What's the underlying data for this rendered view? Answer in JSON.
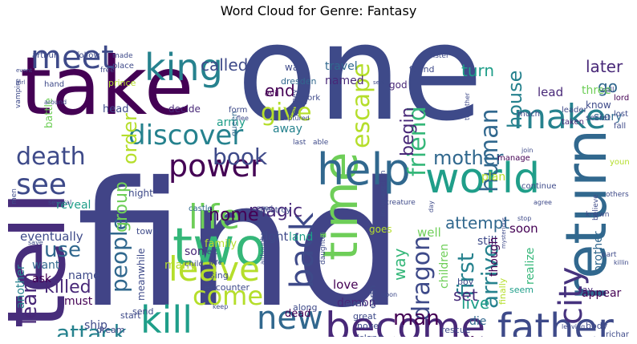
{
  "chart_data": {
    "type": "wordcloud",
    "title": "Word Cloud for Genre: Fantasy",
    "colormap": "viridis",
    "background": "#ffffff",
    "words": [
      {
        "text": "find",
        "weight": 100,
        "color": "#414487"
      },
      {
        "text": "one",
        "weight": 92,
        "color": "#3e4a89"
      },
      {
        "text": "take",
        "weight": 72,
        "color": "#440154"
      },
      {
        "text": "tell",
        "weight": 66,
        "color": "#472d7b"
      },
      {
        "text": "return",
        "weight": 48,
        "color": "#31688e"
      },
      {
        "text": "two",
        "weight": 44,
        "color": "#35b779"
      },
      {
        "text": "time",
        "weight": 40,
        "color": "#6ece58"
      },
      {
        "text": "help",
        "weight": 38,
        "color": "#31688e"
      },
      {
        "text": "world",
        "weight": 38,
        "color": "#1f9e89"
      },
      {
        "text": "become",
        "weight": 36,
        "color": "#482878"
      },
      {
        "text": "father",
        "weight": 34,
        "color": "#3e4a89"
      },
      {
        "text": "king",
        "weight": 34,
        "color": "#26828e"
      },
      {
        "text": "kill",
        "weight": 33,
        "color": "#1f9e89"
      },
      {
        "text": "make",
        "weight": 32,
        "color": "#26828e"
      },
      {
        "text": "life",
        "weight": 31,
        "color": "#6ece58"
      },
      {
        "text": "leave",
        "weight": 31,
        "color": "#b5de2b"
      },
      {
        "text": "meet",
        "weight": 30,
        "color": "#3e4a89"
      },
      {
        "text": "back",
        "weight": 30,
        "color": "#3e4a89"
      },
      {
        "text": "new",
        "weight": 29,
        "color": "#31688e"
      },
      {
        "text": "power",
        "weight": 28,
        "color": "#440154"
      },
      {
        "text": "see",
        "weight": 28,
        "color": "#3e4a89"
      },
      {
        "text": "city",
        "weight": 27,
        "color": "#46327e"
      },
      {
        "text": "escape",
        "weight": 24,
        "color": "#b5de2b"
      },
      {
        "text": "friend",
        "weight": 24,
        "color": "#35b779"
      },
      {
        "text": "human",
        "weight": 24,
        "color": "#31688e"
      },
      {
        "text": "discover",
        "weight": 24,
        "color": "#26828e"
      },
      {
        "text": "people",
        "weight": 23,
        "color": "#31688e"
      },
      {
        "text": "dragon",
        "weight": 23,
        "color": "#3e4a89"
      },
      {
        "text": "first",
        "weight": 22,
        "color": "#26828e"
      },
      {
        "text": "arrive",
        "weight": 22,
        "color": "#26828e"
      },
      {
        "text": "come",
        "weight": 22,
        "color": "#b5de2b"
      },
      {
        "text": "give",
        "weight": 21,
        "color": "#b5de2b"
      },
      {
        "text": "death",
        "weight": 21,
        "color": "#3e4a89"
      },
      {
        "text": "attack",
        "weight": 20,
        "color": "#26828e"
      },
      {
        "text": "book",
        "weight": 20,
        "color": "#3e4a89"
      },
      {
        "text": "mother",
        "weight": 20,
        "color": "#31688e"
      },
      {
        "text": "order",
        "weight": 19,
        "color": "#b5de2b"
      },
      {
        "text": "begin",
        "weight": 19,
        "color": "#482878"
      },
      {
        "text": "learn",
        "weight": 18,
        "color": "#482878"
      },
      {
        "text": "use",
        "weight": 18,
        "color": "#31688e"
      },
      {
        "text": "man",
        "weight": 18,
        "color": "#440154"
      },
      {
        "text": "group",
        "weight": 18,
        "color": "#6ece58"
      },
      {
        "text": "house",
        "weight": 16,
        "color": "#26828e"
      },
      {
        "text": "killed",
        "weight": 16,
        "color": "#482878"
      },
      {
        "text": "magic",
        "weight": 15,
        "color": "#482878"
      },
      {
        "text": "home",
        "weight": 15,
        "color": "#440154"
      },
      {
        "text": "called",
        "weight": 15,
        "color": "#3e4a89"
      },
      {
        "text": "turn",
        "weight": 15,
        "color": "#1f9e89"
      },
      {
        "text": "later",
        "weight": 15,
        "color": "#482878"
      },
      {
        "text": "end",
        "weight": 14,
        "color": "#440154"
      },
      {
        "text": "attempt",
        "weight": 14,
        "color": "#31688e"
      },
      {
        "text": "live",
        "weight": 14,
        "color": "#1f9e89"
      },
      {
        "text": "way",
        "weight": 14,
        "color": "#35b779"
      },
      {
        "text": "set",
        "weight": 14,
        "color": "#472d7b"
      },
      {
        "text": "go",
        "weight": 14,
        "color": "#31688e"
      },
      {
        "text": "another",
        "weight": 11,
        "color": "#26828e"
      },
      {
        "text": "eventually",
        "weight": 11,
        "color": "#3e4a89"
      },
      {
        "text": "fight",
        "weight": 11,
        "color": "#3e4a89"
      },
      {
        "text": "love",
        "weight": 11,
        "color": "#440154"
      },
      {
        "text": "soon",
        "weight": 11,
        "color": "#440154"
      },
      {
        "text": "well",
        "weight": 11,
        "color": "#6ece58"
      },
      {
        "text": "lead",
        "weight": 11,
        "color": "#482878"
      },
      {
        "text": "three",
        "weight": 11,
        "color": "#6ece58"
      },
      {
        "text": "story",
        "weight": 11,
        "color": "#31688e"
      },
      {
        "text": "reveal",
        "weight": 11,
        "color": "#1f9e89"
      },
      {
        "text": "want",
        "weight": 10,
        "color": "#31688e"
      },
      {
        "text": "name",
        "weight": 10,
        "color": "#3e4a89"
      },
      {
        "text": "must",
        "weight": 10,
        "color": "#440154"
      },
      {
        "text": "ask",
        "weight": 10,
        "color": "#440154"
      },
      {
        "text": "son",
        "weight": 10,
        "color": "#482878"
      },
      {
        "text": "many",
        "weight": 10,
        "color": "#b5de2b"
      },
      {
        "text": "demon",
        "weight": 10,
        "color": "#482878"
      },
      {
        "text": "die",
        "weight": 10,
        "color": "#31688e"
      },
      {
        "text": "still",
        "weight": 10,
        "color": "#3e4a89"
      },
      {
        "text": "plan",
        "weight": 10,
        "color": "#b5de2b"
      },
      {
        "text": "though",
        "weight": 10,
        "color": "#440154"
      },
      {
        "text": "realize",
        "weight": 10,
        "color": "#35b779"
      },
      {
        "text": "brother",
        "weight": 10,
        "color": "#31688e"
      },
      {
        "text": "appear",
        "weight": 10,
        "color": "#440154"
      },
      {
        "text": "children",
        "weight": 10,
        "color": "#6ece58"
      },
      {
        "text": "ship",
        "weight": 10,
        "color": "#3e4a89"
      },
      {
        "text": "force",
        "weight": 10,
        "color": "#440154"
      },
      {
        "text": "family",
        "weight": 9,
        "color": "#b5de2b"
      },
      {
        "text": "travel",
        "weight": 9,
        "color": "#31688e"
      },
      {
        "text": "named",
        "weight": 9,
        "color": "#482878"
      },
      {
        "text": "army",
        "weight": 9,
        "color": "#1f9e89"
      },
      {
        "text": "away",
        "weight": 9,
        "color": "#26828e"
      },
      {
        "text": "land",
        "weight": 9,
        "color": "#1f9e89"
      },
      {
        "text": "dead",
        "weight": 9,
        "color": "#440154"
      },
      {
        "text": "know",
        "weight": 8,
        "color": "#3e4a89"
      },
      {
        "text": "head",
        "weight": 8,
        "color": "#3e4a89"
      },
      {
        "text": "decide",
        "weight": 8,
        "color": "#482878"
      },
      {
        "text": "night",
        "weight": 8,
        "color": "#3e4a89"
      },
      {
        "text": "meanwhile",
        "weight": 8,
        "color": "#3e4a89"
      },
      {
        "text": "god",
        "weight": 8,
        "color": "#482878"
      },
      {
        "text": "war",
        "weight": 8,
        "color": "#3e4a89"
      },
      {
        "text": "found",
        "weight": 7,
        "color": "#3e4a89"
      },
      {
        "text": "battle",
        "weight": 8,
        "color": "#6ece58"
      },
      {
        "text": "dresden",
        "weight": 7,
        "color": "#31688e"
      },
      {
        "text": "goes",
        "weight": 7,
        "color": "#b5de2b"
      },
      {
        "text": "earth",
        "weight": 7,
        "color": "#3e4a89"
      },
      {
        "text": "dream",
        "weight": 7,
        "color": "#3e4a89"
      },
      {
        "text": "town",
        "weight": 7,
        "color": "#3e4a89"
      },
      {
        "text": "castle",
        "weight": 6,
        "color": "#31688e"
      },
      {
        "text": "destroy",
        "weight": 6,
        "color": "#3e4a89"
      },
      {
        "text": "prince",
        "weight": 6,
        "color": "#b5de2b"
      },
      {
        "text": "evil",
        "weight": 6,
        "color": "#440154"
      },
      {
        "text": "work",
        "weight": 6,
        "color": "#3e4a89"
      },
      {
        "text": "queen",
        "weight": 6,
        "color": "#31688e"
      },
      {
        "text": "form",
        "weight": 6,
        "color": "#3e4a89"
      },
      {
        "text": "manage",
        "weight": 6,
        "color": "#440154"
      },
      {
        "text": "continue",
        "weight": 6,
        "color": "#3e4a89"
      },
      {
        "text": "young",
        "weight": 6,
        "color": "#b5de2b"
      },
      {
        "text": "secret",
        "weight": 6,
        "color": "#3e4a89"
      },
      {
        "text": "leader",
        "weight": 6,
        "color": "#3e4a89"
      },
      {
        "text": "much",
        "weight": 6,
        "color": "#3e4a89"
      },
      {
        "text": "taken",
        "weight": 6,
        "color": "#482878"
      },
      {
        "text": "lord",
        "weight": 6,
        "color": "#440154"
      },
      {
        "text": "lost",
        "weight": 6,
        "color": "#3e4a89"
      },
      {
        "text": "fall",
        "weight": 6,
        "color": "#3e4a89"
      },
      {
        "text": "call",
        "weight": 5,
        "color": "#3e4a89"
      },
      {
        "text": "believe",
        "weight": 5,
        "color": "#3e4a89"
      },
      {
        "text": "others",
        "weight": 5,
        "color": "#3e4a89"
      },
      {
        "text": "known",
        "weight": 5,
        "color": "#3e4a89"
      },
      {
        "text": "part",
        "weight": 5,
        "color": "#3e4a89"
      },
      {
        "text": "killing",
        "weight": 4,
        "color": "#3e4a89"
      },
      {
        "text": "say",
        "weight": 6,
        "color": "#482878"
      },
      {
        "text": "body",
        "weight": 6,
        "color": "#3e4a89"
      },
      {
        "text": "richard",
        "weight": 5,
        "color": "#3e4a89"
      },
      {
        "text": "leaving",
        "weight": 4,
        "color": "#3e4a89"
      },
      {
        "text": "seem",
        "weight": 6,
        "color": "#1f9e89"
      },
      {
        "text": "finally",
        "weight": 6,
        "color": "#b5de2b"
      },
      {
        "text": "boy",
        "weight": 6,
        "color": "#3e4a89"
      },
      {
        "text": "rescue",
        "weight": 6,
        "color": "#3e4a89"
      },
      {
        "text": "great",
        "weight": 6,
        "color": "#3e4a89"
      },
      {
        "text": "novel",
        "weight": 6,
        "color": "#3e4a89"
      },
      {
        "text": "island",
        "weight": 6,
        "color": "#3e4a89"
      },
      {
        "text": "bring",
        "weight": 6,
        "color": "#3e4a89"
      },
      {
        "text": "fire",
        "weight": 6,
        "color": "#3e4a89"
      },
      {
        "text": "revealed",
        "weight": 5,
        "color": "#3e4a89"
      },
      {
        "text": "send",
        "weight": 6,
        "color": "#3e4a89"
      },
      {
        "text": "start",
        "weight": 6,
        "color": "#3e4a89"
      },
      {
        "text": "old",
        "weight": 6,
        "color": "#3e4a89"
      },
      {
        "text": "encounter",
        "weight": 6,
        "color": "#3e4a89"
      },
      {
        "text": "using",
        "weight": 6,
        "color": "#3e4a89"
      },
      {
        "text": "child",
        "weight": 6,
        "color": "#3e4a89"
      },
      {
        "text": "left",
        "weight": 5,
        "color": "#3e4a89"
      },
      {
        "text": "along",
        "weight": 6,
        "color": "#3e4a89"
      },
      {
        "text": "even",
        "weight": 6,
        "color": "#3e4a89"
      },
      {
        "text": "daughter",
        "weight": 5,
        "color": "#3e4a89"
      },
      {
        "text": "arthur",
        "weight": 6,
        "color": "#3e4a89"
      },
      {
        "text": "follow",
        "weight": 6,
        "color": "#3e4a89"
      },
      {
        "text": "free",
        "weight": 5,
        "color": "#3e4a89"
      },
      {
        "text": "made",
        "weight": 5,
        "color": "#3e4a89"
      },
      {
        "text": "place",
        "weight": 5,
        "color": "#3e4a89"
      },
      {
        "text": "journey",
        "weight": 5,
        "color": "#3e4a89"
      },
      {
        "text": "hand",
        "weight": 5,
        "color": "#3e4a89"
      },
      {
        "text": "men",
        "weight": 5,
        "color": "#3e4a89"
      },
      {
        "text": "vampire",
        "weight": 5,
        "color": "#3e4a89"
      },
      {
        "text": "around",
        "weight": 4,
        "color": "#3e4a89"
      },
      {
        "text": "sister",
        "weight": 5,
        "color": "#3e4a89"
      },
      {
        "text": "together",
        "weight": 4,
        "color": "#3e4a89"
      },
      {
        "text": "creature",
        "weight": 5,
        "color": "#3e4a89"
      },
      {
        "text": "explain",
        "weight": 5,
        "color": "#3e4a89"
      },
      {
        "text": "last",
        "weight": 5,
        "color": "#3e4a89"
      },
      {
        "text": "able",
        "weight": 5,
        "color": "#3e4a89"
      },
      {
        "text": "captured",
        "weight": 4,
        "color": "#3e4a89"
      },
      {
        "text": "flee",
        "weight": 4,
        "color": "#3e4a89"
      },
      {
        "text": "although",
        "weight": 4,
        "color": "#3e4a89"
      },
      {
        "text": "mysterious",
        "weight": 4,
        "color": "#3e4a89"
      },
      {
        "text": "several",
        "weight": 4,
        "color": "#3e4a89"
      },
      {
        "text": "including",
        "weight": 4,
        "color": "#3e4a89"
      },
      {
        "text": "upon",
        "weight": 4,
        "color": "#3e4a89"
      },
      {
        "text": "keep",
        "weight": 4,
        "color": "#3e4a89"
      },
      {
        "text": "wife",
        "weight": 4,
        "color": "#3e4a89"
      },
      {
        "text": "stop",
        "weight": 4,
        "color": "#3e4a89"
      },
      {
        "text": "agree",
        "weight": 4,
        "color": "#3e4a89"
      },
      {
        "text": "need",
        "weight": 4,
        "color": "#3e4a89"
      },
      {
        "text": "join",
        "weight": 4,
        "color": "#3e4a89"
      },
      {
        "text": "day",
        "weight": 4,
        "color": "#3e4a89"
      },
      {
        "text": "sent",
        "weight": 4,
        "color": "#3e4a89"
      },
      {
        "text": "show",
        "weight": 4,
        "color": "#3e4a89"
      },
      {
        "text": "event",
        "weight": 3,
        "color": "#3e4a89"
      },
      {
        "text": "girl",
        "weight": 3,
        "color": "#3e4a89"
      },
      {
        "text": "save",
        "weight": 4,
        "color": "#3e4a89"
      }
    ]
  }
}
